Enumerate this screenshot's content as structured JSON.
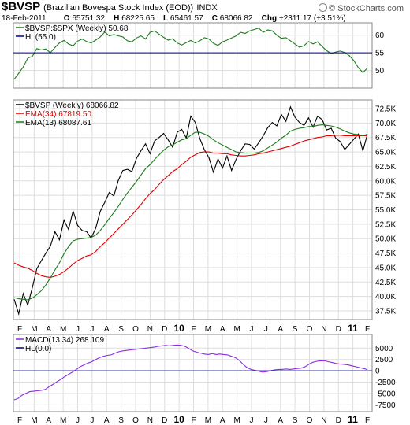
{
  "header": {
    "symbol": "$BVSP",
    "description": "(Brazilian Bovespa Stock Index (EOD))",
    "exchange": "INDX",
    "brand": "© StockCharts.com",
    "date": "18-Feb-2011",
    "o_label": "O",
    "o_value": "65751.32",
    "h_label": "H",
    "h_value": "68225.65",
    "l_label": "L",
    "l_value": "65461.57",
    "c_label": "C",
    "c_value": "68066.82",
    "chg_label": "Chg",
    "chg_value": "+2311.17 (+3.51%)"
  },
  "chart_data": [
    {
      "type": "line",
      "panel": "ratio",
      "x_labels": [
        "F",
        "M",
        "A",
        "M",
        "J",
        "J",
        "A",
        "S",
        "O",
        "N",
        "D",
        "10",
        "F",
        "M",
        "A",
        "M",
        "J",
        "J",
        "A",
        "S",
        "O",
        "N",
        "D",
        "11",
        "F"
      ],
      "x_label_year_flags": [
        false,
        false,
        false,
        false,
        false,
        false,
        false,
        false,
        false,
        false,
        false,
        true,
        false,
        false,
        false,
        false,
        false,
        false,
        false,
        false,
        false,
        false,
        false,
        true,
        false
      ],
      "ylim": [
        45,
        63.5
      ],
      "y_ticks": [
        "50",
        "55",
        "60"
      ],
      "y_tick_values": [
        50,
        55,
        60
      ],
      "grid": true,
      "legend_position": "top-left",
      "series": [
        {
          "name": "$BVSP:$SPX (Weekly) 50.68",
          "color": "#1e7a1e",
          "values": [
            47.5,
            49.2,
            51.0,
            53.5,
            54.0,
            56.2,
            55.8,
            56.1,
            55.0,
            56.5,
            57.8,
            58.5,
            57.5,
            57.0,
            58.3,
            58.9,
            58.2,
            57.8,
            58.6,
            59.5,
            60.9,
            59.8,
            60.2,
            59.8,
            59.5,
            58.4,
            58.1,
            59.2,
            59.8,
            58.9,
            60.8,
            61.2,
            60.3,
            59.4,
            58.6,
            59.0,
            57.8,
            57.2,
            57.9,
            58.5,
            57.8,
            58.4,
            59.3,
            58.9,
            57.7,
            57.1,
            58.1,
            58.6,
            59.2,
            59.8,
            60.8,
            60.5,
            61.2,
            61.6,
            62.0,
            60.8,
            61.5,
            61.2,
            60.0,
            59.1,
            59.3,
            58.4,
            57.5,
            56.6,
            57.0,
            58.2,
            57.5,
            58.1,
            56.8,
            55.6,
            54.8,
            55.2,
            55.5,
            55.1,
            54.2,
            52.8,
            50.8,
            49.4,
            50.68
          ]
        },
        {
          "name": "HL(55.0)",
          "color": "#00008b",
          "values": [
            55.0
          ]
        }
      ]
    },
    {
      "type": "line",
      "panel": "price",
      "x_labels": [
        "F",
        "M",
        "A",
        "M",
        "J",
        "J",
        "A",
        "S",
        "O",
        "N",
        "D",
        "10",
        "F",
        "M",
        "A",
        "M",
        "J",
        "J",
        "A",
        "S",
        "O",
        "N",
        "D",
        "11",
        "F"
      ],
      "x_label_year_flags": [
        false,
        false,
        false,
        false,
        false,
        false,
        false,
        false,
        false,
        false,
        false,
        true,
        false,
        false,
        false,
        false,
        false,
        false,
        false,
        false,
        false,
        false,
        false,
        true,
        false
      ],
      "ylim": [
        36000,
        74000
      ],
      "y_ticks": [
        "37.5K",
        "40.0K",
        "42.5K",
        "45.0K",
        "47.5K",
        "50.0K",
        "52.5K",
        "55.0K",
        "57.5K",
        "60.0K",
        "62.5K",
        "65.0K",
        "67.5K",
        "70.0K",
        "72.5K"
      ],
      "y_tick_values": [
        37500,
        40000,
        42500,
        45000,
        47500,
        50000,
        52500,
        55000,
        57500,
        60000,
        62500,
        65000,
        67500,
        70000,
        72500
      ],
      "grid": true,
      "legend_position": "top-left",
      "series": [
        {
          "name": "$BVSP (Weekly) 68066.82",
          "color": "#000000",
          "values": [
            39500,
            37000,
            40500,
            38500,
            41500,
            44800,
            46200,
            47500,
            48700,
            51200,
            49800,
            53200,
            51600,
            54800,
            52300,
            51400,
            51200,
            50100,
            51800,
            54700,
            56300,
            58000,
            57400,
            60100,
            61800,
            62000,
            61600,
            63900,
            65200,
            66400,
            64700,
            66900,
            67500,
            68200,
            67100,
            65800,
            68400,
            68900,
            67400,
            71200,
            70100,
            67300,
            65400,
            64000,
            61500,
            63800,
            62200,
            64300,
            61800,
            63700,
            65200,
            66400,
            66300,
            65500,
            66600,
            67800,
            69200,
            70100,
            69500,
            71500,
            70300,
            72800,
            71000,
            70100,
            69600,
            70900,
            69300,
            71200,
            70600,
            68800,
            69100,
            67400,
            66800,
            65400,
            66300,
            67200,
            68100,
            65200,
            68066.82
          ]
        },
        {
          "name": "EMA(34) 67819.50",
          "color": "#e00000",
          "values": [
            45800,
            45400,
            45100,
            44900,
            44500,
            44000,
            43600,
            43400,
            43300,
            43500,
            43800,
            44300,
            44900,
            45600,
            46200,
            46600,
            47000,
            47200,
            47800,
            48600,
            49300,
            50100,
            50900,
            51700,
            52500,
            53300,
            54100,
            55000,
            55900,
            56900,
            57800,
            58500,
            59400,
            60200,
            60900,
            61600,
            62100,
            62800,
            63400,
            64100,
            64500,
            64900,
            65000,
            65000,
            64800,
            64800,
            64700,
            64700,
            64500,
            64400,
            64300,
            64300,
            64400,
            64500,
            64700,
            64800,
            65000,
            65200,
            65400,
            65600,
            65800,
            66000,
            66300,
            66600,
            66900,
            67100,
            67300,
            67500,
            67600,
            67800,
            67800,
            67900,
            67900,
            67800,
            67800,
            67800,
            67800,
            67800,
            67819.5
          ]
        },
        {
          "name": "EMA(13) 68087.61",
          "color": "#1e7a1e",
          "values": [
            39800,
            39600,
            39500,
            39400,
            39700,
            40300,
            41000,
            42000,
            43200,
            44600,
            45800,
            47400,
            48600,
            49600,
            49900,
            50000,
            50100,
            50200,
            50600,
            51400,
            52400,
            53500,
            54500,
            55600,
            56800,
            57900,
            58900,
            59900,
            61000,
            62100,
            62800,
            63700,
            64500,
            65300,
            65900,
            66200,
            66700,
            67100,
            67300,
            67900,
            68400,
            68400,
            68100,
            67700,
            67100,
            66600,
            66200,
            65800,
            65400,
            65000,
            64900,
            64800,
            64800,
            64800,
            64900,
            65200,
            65700,
            66200,
            66700,
            67400,
            67900,
            68600,
            68900,
            69100,
            69200,
            69400,
            69400,
            69600,
            69700,
            69600,
            69500,
            69300,
            69000,
            68600,
            68300,
            68100,
            68000,
            67800,
            68087.61
          ]
        }
      ]
    },
    {
      "type": "line",
      "panel": "macd",
      "x_labels": [
        "F",
        "M",
        "A",
        "M",
        "J",
        "J",
        "A",
        "S",
        "O",
        "N",
        "D",
        "10",
        "F",
        "M",
        "A",
        "M",
        "J",
        "J",
        "A",
        "S",
        "O",
        "N",
        "D",
        "11",
        "F"
      ],
      "x_label_year_flags": [
        false,
        false,
        false,
        false,
        false,
        false,
        false,
        false,
        false,
        false,
        false,
        true,
        false,
        false,
        false,
        false,
        false,
        false,
        false,
        false,
        false,
        false,
        false,
        true,
        false
      ],
      "ylim": [
        -9000,
        8000
      ],
      "y_ticks": [
        "5000",
        "2500",
        "0",
        "-2500",
        "-5000",
        "-7500"
      ],
      "y_tick_values": [
        5000,
        2500,
        0,
        -2500,
        -5000,
        -7500
      ],
      "grid": true,
      "legend_position": "top-left",
      "series": [
        {
          "name": "MACD(13,34) 268.109",
          "color": "#8a2be2",
          "values": [
            -6400,
            -6100,
            -5400,
            -5000,
            -4600,
            -4500,
            -4400,
            -4300,
            -4100,
            -3500,
            -3000,
            -2400,
            -1900,
            -1300,
            -800,
            -300,
            300,
            900,
            1300,
            1700,
            2000,
            2500,
            2900,
            3200,
            3400,
            3500,
            3900,
            4200,
            4400,
            4500,
            4600,
            4700,
            4800,
            4900,
            5000,
            5100,
            5200,
            5400,
            5500,
            5600,
            5500,
            5600,
            5700,
            5600,
            5400,
            4900,
            4400,
            4100,
            3900,
            3700,
            3600,
            3800,
            3600,
            3700,
            3600,
            3500,
            3200,
            2900,
            2300,
            1400,
            700,
            300,
            100,
            -100,
            -300,
            -200,
            0,
            200,
            300,
            300,
            400,
            300,
            400,
            500,
            600,
            900,
            1500,
            1900,
            2100,
            2200,
            2200,
            2000,
            1800,
            1600,
            1500,
            1400,
            1300,
            1100,
            900,
            700,
            500,
            268.109
          ]
        },
        {
          "name": "HL(0.0)",
          "color": "#00008b",
          "values": [
            0
          ]
        }
      ]
    }
  ]
}
